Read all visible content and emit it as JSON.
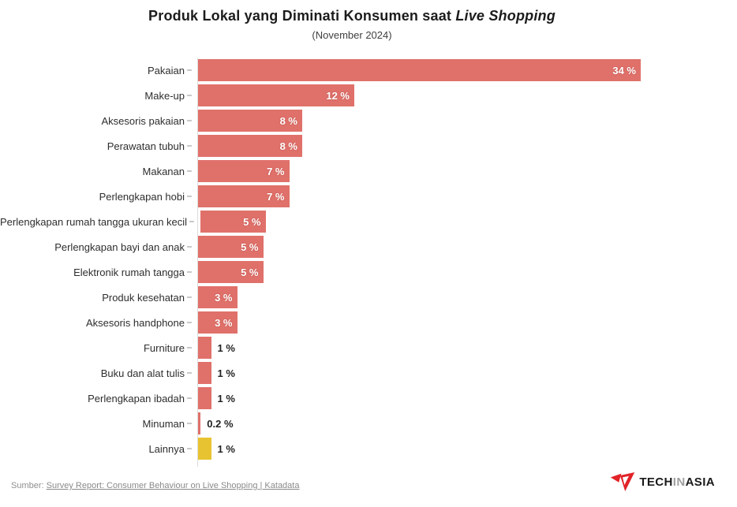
{
  "header": {
    "title_main": "Produk Lokal yang Diminati Konsumen saat ",
    "title_italic": "Live Shopping",
    "subtitle": "(November 2024)"
  },
  "chart_data": {
    "type": "bar",
    "orientation": "horizontal",
    "title": "Produk Lokal yang Diminati Konsumen saat Live Shopping",
    "subtitle": "(November 2024)",
    "xlim": [
      0,
      34
    ],
    "grid": false,
    "legend": false,
    "categories": [
      "Pakaian",
      "Make-up",
      "Aksesoris pakaian",
      "Perawatan tubuh",
      "Makanan",
      "Perlengkapan hobi",
      "Perlengkapan rumah tangga ukuran kecil",
      "Perlengkapan bayi dan anak",
      "Elektronik rumah tangga",
      "Produk kesehatan",
      "Aksesoris handphone",
      "Furniture",
      "Buku dan alat tulis",
      "Perlengkapan ibadah",
      "Minuman",
      "Lainnya"
    ],
    "values": [
      34,
      12,
      8,
      8,
      7,
      7,
      5,
      5,
      5,
      3,
      3,
      1,
      1,
      1,
      0.2,
      1
    ],
    "value_labels": [
      "34 %",
      "12 %",
      "8 %",
      "8 %",
      "7 %",
      "7 %",
      "5 %",
      "5 %",
      "5 %",
      "3 %",
      "3 %",
      "1 %",
      "1 %",
      "1 %",
      "0.2 %",
      "1 %"
    ],
    "colors": [
      "#E0716A",
      "#E0716A",
      "#E0716A",
      "#E0716A",
      "#E0716A",
      "#E0716A",
      "#E0716A",
      "#E0716A",
      "#E0716A",
      "#E0716A",
      "#E0716A",
      "#E0716A",
      "#E0716A",
      "#E0716A",
      "#E0716A",
      "#E7C331"
    ],
    "accent_color": "#E0716A",
    "highlight_color": "#E7C331",
    "inside_label_min_value": 3
  },
  "footer": {
    "source_prefix": "Sumber:",
    "source_link": "Survey Report: Consumer Behaviour on Live Shopping | Katadata"
  },
  "logo": {
    "text_tech": "TECH",
    "text_in": "IN",
    "text_asia": "ASIA",
    "mark_color": "#E12328"
  }
}
